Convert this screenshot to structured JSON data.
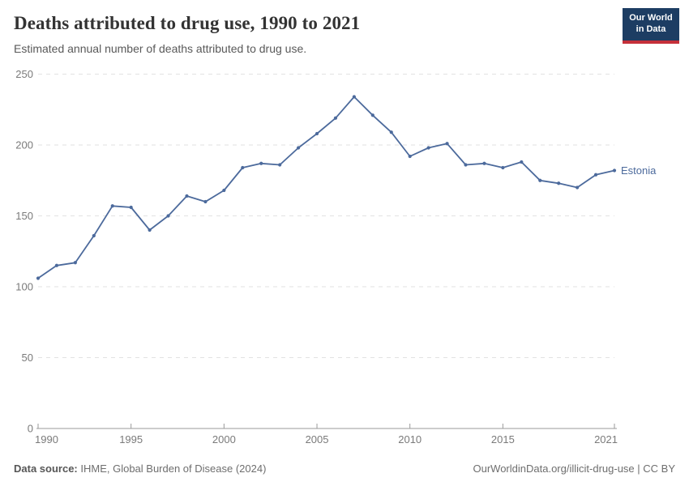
{
  "header": {
    "title": "Deaths attributed to drug use, 1990 to 2021",
    "subtitle": "Estimated annual number of deaths attributed to drug use.",
    "logo": {
      "line1": "Our World",
      "line2": "in Data"
    }
  },
  "colors": {
    "line": "#4c6a9c",
    "logo_bg": "#1d3d63",
    "logo_accent": "#c5303a",
    "axis": "#9a9a9a",
    "gridline": "#e2e2e2",
    "tick_label": "#7a7a7a"
  },
  "chart_data": {
    "type": "line",
    "title": "Deaths attributed to drug use, 1990 to 2021",
    "xlabel": "",
    "ylabel": "",
    "xlim": [
      1990,
      2021
    ],
    "ylim": [
      0,
      250
    ],
    "x_ticks": [
      1990,
      1995,
      2000,
      2005,
      2010,
      2015,
      2021
    ],
    "y_ticks": [
      0,
      50,
      100,
      150,
      200,
      250
    ],
    "grid": "horizontal-dashed",
    "legend_position": "end-of-line-label",
    "series": [
      {
        "name": "Estonia",
        "color": "#4c6a9c",
        "x": [
          1990,
          1991,
          1992,
          1993,
          1994,
          1995,
          1996,
          1997,
          1998,
          1999,
          2000,
          2001,
          2002,
          2003,
          2004,
          2005,
          2006,
          2007,
          2008,
          2009,
          2010,
          2011,
          2012,
          2013,
          2014,
          2015,
          2016,
          2017,
          2018,
          2019,
          2020,
          2021
        ],
        "values": [
          106,
          115,
          117,
          136,
          157,
          156,
          140,
          150,
          164,
          160,
          168,
          184,
          187,
          186,
          198,
          208,
          219,
          234,
          221,
          209,
          192,
          198,
          201,
          186,
          187,
          184,
          188,
          175,
          173,
          170,
          179,
          182
        ]
      }
    ]
  },
  "footer": {
    "datasource_label": "Data source:",
    "datasource_value": " IHME, Global Burden of Disease (2024)",
    "credit": "OurWorldinData.org/illicit-drug-use | CC BY"
  }
}
